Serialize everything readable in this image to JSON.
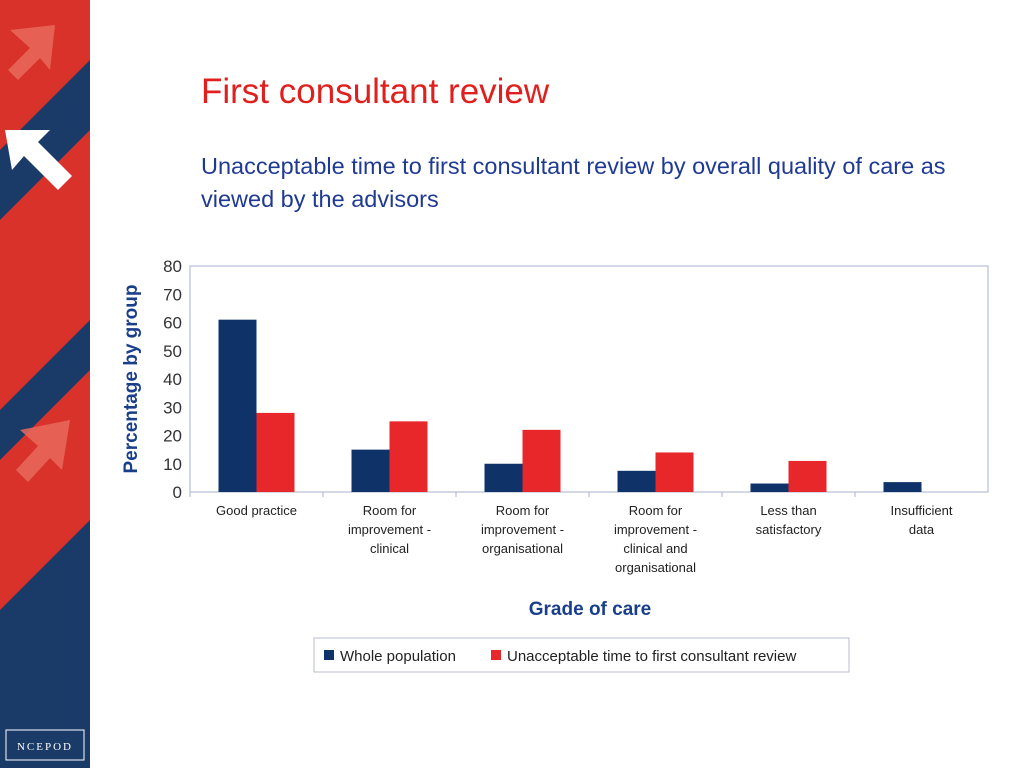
{
  "slide": {
    "title": "First consultant review",
    "subtitle": "Unacceptable time to first consultant review by overall quality of care as viewed by the advisors",
    "logo_text": "NCEPOD"
  },
  "colors": {
    "title": "#e0201e",
    "subtitle": "#1f3a93",
    "series_whole_population": "#0f3369",
    "series_unacceptable": "#e8272b",
    "side_band_navy": "#1a3a68",
    "side_band_red": "#d9322b"
  },
  "chart_data": {
    "type": "bar",
    "title": "",
    "xlabel": "Grade of care",
    "ylabel": "Percentage by group",
    "ylim": [
      0,
      80
    ],
    "yticks": [
      0,
      10,
      20,
      30,
      40,
      50,
      60,
      70,
      80
    ],
    "grid": false,
    "legend_position": "bottom",
    "categories": [
      [
        "Good practice"
      ],
      [
        "Room for",
        "improvement -",
        "clinical"
      ],
      [
        "Room for",
        "improvement -",
        "organisational"
      ],
      [
        "Room for",
        "improvement -",
        "clinical and",
        "organisational"
      ],
      [
        "Less than",
        "satisfactory"
      ],
      [
        "Insufficient",
        "data"
      ]
    ],
    "series": [
      {
        "name": "Whole population",
        "color": "#0f3369",
        "values": [
          61,
          15,
          10,
          7.5,
          3,
          3.5
        ]
      },
      {
        "name": "Unacceptable time to first consultant review",
        "color": "#e8272b",
        "values": [
          28,
          25,
          22,
          14,
          11,
          0
        ]
      }
    ]
  }
}
